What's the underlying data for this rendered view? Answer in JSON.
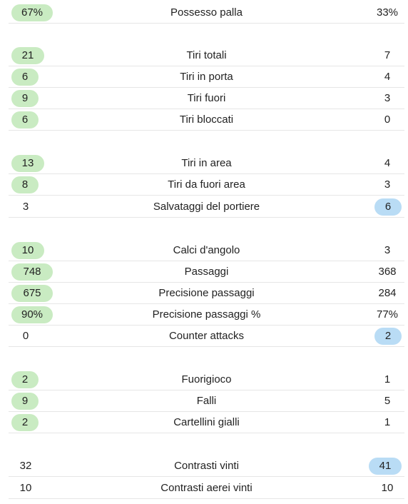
{
  "stats": [
    {
      "label": "Possesso palla",
      "home": "67%",
      "away": "33%",
      "leader": "home"
    },
    {
      "label": "Tiri totali",
      "home": "21",
      "away": "7",
      "leader": "home"
    },
    {
      "label": "Tiri in porta",
      "home": "6",
      "away": "4",
      "leader": "home"
    },
    {
      "label": "Tiri fuori",
      "home": "9",
      "away": "3",
      "leader": "home"
    },
    {
      "label": "Tiri bloccati",
      "home": "6",
      "away": "0",
      "leader": "home"
    },
    {
      "label": "Tiri in area",
      "home": "13",
      "away": "4",
      "leader": "home"
    },
    {
      "label": "Tiri da fuori area",
      "home": "8",
      "away": "3",
      "leader": "home"
    },
    {
      "label": "Salvataggi del portiere",
      "home": "3",
      "away": "6",
      "leader": "away"
    },
    {
      "label": "Calci d'angolo",
      "home": "10",
      "away": "3",
      "leader": "home"
    },
    {
      "label": "Passaggi",
      "home": "748",
      "away": "368",
      "leader": "home"
    },
    {
      "label": "Precisione passaggi",
      "home": "675",
      "away": "284",
      "leader": "home"
    },
    {
      "label": "Precisione passaggi %",
      "home": "90%",
      "away": "77%",
      "leader": "home"
    },
    {
      "label": "Counter attacks",
      "home": "0",
      "away": "2",
      "leader": "away"
    },
    {
      "label": "Fuorigioco",
      "home": "2",
      "away": "1",
      "leader": "home"
    },
    {
      "label": "Falli",
      "home": "9",
      "away": "5",
      "leader": "home"
    },
    {
      "label": "Cartellini gialli",
      "home": "2",
      "away": "1",
      "leader": "home"
    },
    {
      "label": "Contrasti vinti",
      "home": "32",
      "away": "41",
      "leader": "away"
    },
    {
      "label": "Contrasti aerei vinti",
      "home": "10",
      "away": "10",
      "leader": "none"
    }
  ],
  "colors": {
    "home_lead": "#c9ebc2",
    "away_lead": "#b9dcf5",
    "divider": "#e6e6e6"
  }
}
